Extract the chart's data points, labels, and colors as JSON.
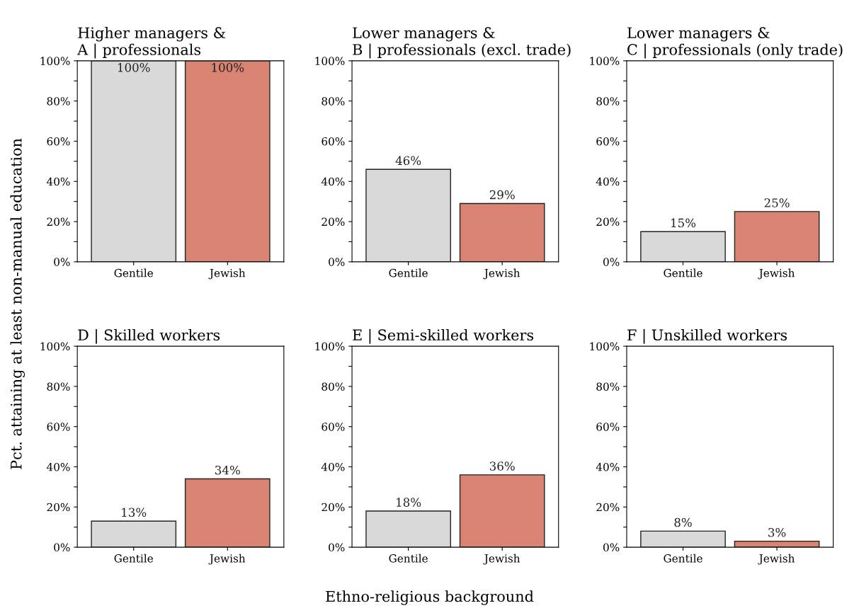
{
  "chart_data": [
    {
      "type": "bar",
      "title": "Higher managers &\nA | professionals",
      "ylabel": "Pct. attaining at least non-manual education",
      "categories": [
        "Gentile",
        "Jewish"
      ],
      "colors": [
        "#d9d9d9",
        "#d98373"
      ],
      "values": [
        100,
        100
      ],
      "value_labels": [
        "100%",
        "100%"
      ],
      "ylim": [
        0,
        100
      ],
      "yticks": [
        {
          "value": 0,
          "label": "0%"
        },
        {
          "value": 10,
          "label": null
        },
        {
          "value": 20,
          "label": "20%"
        },
        {
          "value": 30,
          "label": null
        },
        {
          "value": 40,
          "label": "40%"
        },
        {
          "value": 50,
          "label": null
        },
        {
          "value": 60,
          "label": "60%"
        },
        {
          "value": 70,
          "label": null
        },
        {
          "value": 80,
          "label": "80%"
        },
        {
          "value": 90,
          "label": null
        },
        {
          "value": 100,
          "label": "100%"
        }
      ],
      "grid": false,
      "legend": false
    },
    {
      "type": "bar",
      "title": "Lower managers &\nB | professionals (excl. trade)",
      "categories": [
        "Gentile",
        "Jewish"
      ],
      "colors": [
        "#d9d9d9",
        "#d98373"
      ],
      "values": [
        46,
        29
      ],
      "value_labels": [
        "46%",
        "29%"
      ],
      "ylim": [
        0,
        100
      ],
      "yticks": [
        {
          "value": 0,
          "label": "0%"
        },
        {
          "value": 10,
          "label": null
        },
        {
          "value": 20,
          "label": "20%"
        },
        {
          "value": 30,
          "label": null
        },
        {
          "value": 40,
          "label": "40%"
        },
        {
          "value": 50,
          "label": null
        },
        {
          "value": 60,
          "label": "60%"
        },
        {
          "value": 70,
          "label": null
        },
        {
          "value": 80,
          "label": "80%"
        },
        {
          "value": 90,
          "label": null
        },
        {
          "value": 100,
          "label": "100%"
        }
      ],
      "grid": false,
      "legend": false
    },
    {
      "type": "bar",
      "title": "Lower managers &\nC | professionals (only trade)",
      "categories": [
        "Gentile",
        "Jewish"
      ],
      "colors": [
        "#d9d9d9",
        "#d98373"
      ],
      "values": [
        15,
        25
      ],
      "value_labels": [
        "15%",
        "25%"
      ],
      "ylim": [
        0,
        100
      ],
      "yticks": [
        {
          "value": 0,
          "label": "0%"
        },
        {
          "value": 10,
          "label": null
        },
        {
          "value": 20,
          "label": "20%"
        },
        {
          "value": 30,
          "label": null
        },
        {
          "value": 40,
          "label": "40%"
        },
        {
          "value": 50,
          "label": null
        },
        {
          "value": 60,
          "label": "60%"
        },
        {
          "value": 70,
          "label": null
        },
        {
          "value": 80,
          "label": "80%"
        },
        {
          "value": 90,
          "label": null
        },
        {
          "value": 100,
          "label": "100%"
        }
      ],
      "grid": false,
      "legend": false
    },
    {
      "type": "bar",
      "title": "D | Skilled workers",
      "categories": [
        "Gentile",
        "Jewish"
      ],
      "colors": [
        "#d9d9d9",
        "#d98373"
      ],
      "values": [
        13,
        34
      ],
      "value_labels": [
        "13%",
        "34%"
      ],
      "ylim": [
        0,
        100
      ],
      "yticks": [
        {
          "value": 0,
          "label": "0%"
        },
        {
          "value": 10,
          "label": null
        },
        {
          "value": 20,
          "label": "20%"
        },
        {
          "value": 30,
          "label": null
        },
        {
          "value": 40,
          "label": "40%"
        },
        {
          "value": 50,
          "label": null
        },
        {
          "value": 60,
          "label": "60%"
        },
        {
          "value": 70,
          "label": null
        },
        {
          "value": 80,
          "label": "80%"
        },
        {
          "value": 90,
          "label": null
        },
        {
          "value": 100,
          "label": "100%"
        }
      ],
      "grid": false,
      "legend": false
    },
    {
      "type": "bar",
      "title": "E | Semi-skilled workers",
      "xlabel": "Ethno-religious background",
      "categories": [
        "Gentile",
        "Jewish"
      ],
      "colors": [
        "#d9d9d9",
        "#d98373"
      ],
      "values": [
        18,
        36
      ],
      "value_labels": [
        "18%",
        "36%"
      ],
      "ylim": [
        0,
        100
      ],
      "yticks": [
        {
          "value": 0,
          "label": "0%"
        },
        {
          "value": 10,
          "label": null
        },
        {
          "value": 20,
          "label": "20%"
        },
        {
          "value": 30,
          "label": null
        },
        {
          "value": 40,
          "label": "40%"
        },
        {
          "value": 50,
          "label": null
        },
        {
          "value": 60,
          "label": "60%"
        },
        {
          "value": 70,
          "label": null
        },
        {
          "value": 80,
          "label": "80%"
        },
        {
          "value": 90,
          "label": null
        },
        {
          "value": 100,
          "label": "100%"
        }
      ],
      "grid": false,
      "legend": false
    },
    {
      "type": "bar",
      "title": "F | Unskilled workers",
      "categories": [
        "Gentile",
        "Jewish"
      ],
      "colors": [
        "#d9d9d9",
        "#d98373"
      ],
      "values": [
        8,
        3
      ],
      "value_labels": [
        "8%",
        "3%"
      ],
      "ylim": [
        0,
        100
      ],
      "yticks": [
        {
          "value": 0,
          "label": "0%"
        },
        {
          "value": 10,
          "label": null
        },
        {
          "value": 20,
          "label": "20%"
        },
        {
          "value": 30,
          "label": null
        },
        {
          "value": 40,
          "label": "40%"
        },
        {
          "value": 50,
          "label": null
        },
        {
          "value": 60,
          "label": "60%"
        },
        {
          "value": 70,
          "label": null
        },
        {
          "value": 80,
          "label": "80%"
        },
        {
          "value": 90,
          "label": null
        },
        {
          "value": 100,
          "label": "100%"
        }
      ],
      "grid": false,
      "legend": false
    }
  ]
}
